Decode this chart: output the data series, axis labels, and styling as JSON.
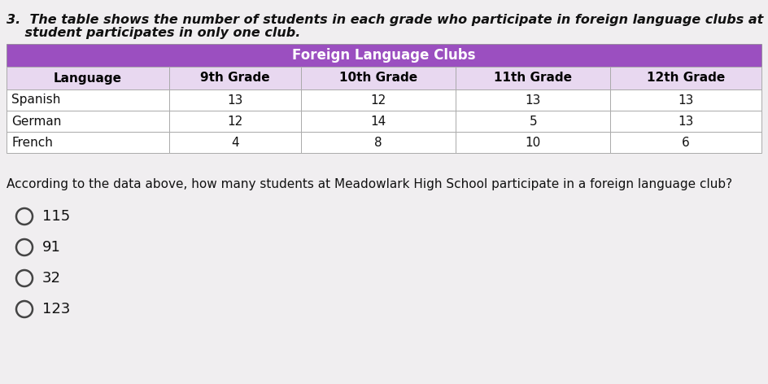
{
  "question_number": "3.",
  "question_text": " The table shows the number of students in each grade who participate in foreign language clubs at Meadowlark High School. Each\n   student participates in only one club.",
  "table_header_main": "Foreign Language Clubs",
  "table_header_main_bg": "#9B4FC0",
  "table_header_main_color": "#FFFFFF",
  "table_col_headers": [
    "Language",
    "9th Grade",
    "10th Grade",
    "11th Grade",
    "12th Grade"
  ],
  "table_col_header_bg": "#E8D8F0",
  "table_col_header_color": "#000000",
  "table_data": [
    [
      "Spanish",
      "13",
      "12",
      "13",
      "13"
    ],
    [
      "German",
      "12",
      "14",
      "5",
      "13"
    ],
    [
      "French",
      "4",
      "8",
      "10",
      "6"
    ]
  ],
  "table_row_bg": "#FFFFFF",
  "table_border_color": "#AAAAAA",
  "follow_up_text": "According to the data above, how many students at Meadowlark High School participate in a foreign language club?",
  "choices": [
    "115",
    "91",
    "32",
    "123"
  ],
  "background_color": "#F0EEF0",
  "font_size_question": 11.5,
  "font_size_table_header": 11,
  "font_size_table_data": 11,
  "font_size_choices": 13
}
